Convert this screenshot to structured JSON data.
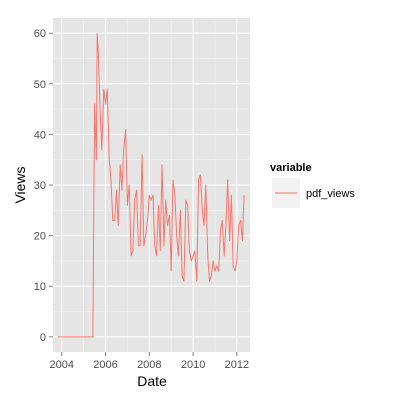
{
  "chart_data": {
    "type": "line",
    "xlabel": "Date",
    "ylabel": "Views",
    "xlim": [
      2003.6,
      2012.6
    ],
    "ylim": [
      -3,
      63
    ],
    "x_ticks": [
      2004,
      2006,
      2008,
      2010,
      2012
    ],
    "y_ticks": [
      0,
      10,
      20,
      30,
      40,
      50,
      60
    ],
    "grid": true,
    "legend": {
      "title": "variable",
      "position": "right",
      "entries": [
        "pdf_views"
      ]
    },
    "series": [
      {
        "name": "pdf_views",
        "color": "#F8766D",
        "x": [
          2003.83,
          2004.0,
          2004.5,
          2005.0,
          2005.42,
          2005.5,
          2005.58,
          2005.62,
          2005.67,
          2005.75,
          2005.83,
          2005.92,
          2006.0,
          2006.08,
          2006.17,
          2006.25,
          2006.33,
          2006.42,
          2006.5,
          2006.58,
          2006.67,
          2006.75,
          2006.83,
          2006.92,
          2007.0,
          2007.08,
          2007.17,
          2007.25,
          2007.33,
          2007.42,
          2007.5,
          2007.58,
          2007.67,
          2007.75,
          2007.83,
          2007.92,
          2008.0,
          2008.08,
          2008.17,
          2008.25,
          2008.33,
          2008.42,
          2008.5,
          2008.58,
          2008.67,
          2008.75,
          2008.83,
          2008.92,
          2009.0,
          2009.08,
          2009.17,
          2009.25,
          2009.33,
          2009.42,
          2009.5,
          2009.58,
          2009.67,
          2009.75,
          2009.83,
          2009.92,
          2010.0,
          2010.08,
          2010.17,
          2010.25,
          2010.33,
          2010.42,
          2010.5,
          2010.58,
          2010.67,
          2010.75,
          2010.83,
          2010.92,
          2011.0,
          2011.08,
          2011.17,
          2011.25,
          2011.33,
          2011.42,
          2011.5,
          2011.58,
          2011.67,
          2011.75,
          2011.83,
          2011.92,
          2012.0,
          2012.08,
          2012.17,
          2012.25,
          2012.33
        ],
        "y": [
          0,
          0,
          0,
          0,
          0,
          46,
          35,
          60,
          56,
          45,
          37,
          49,
          46,
          49,
          35,
          31,
          23,
          23,
          29,
          22,
          34,
          29,
          37,
          41,
          26,
          30,
          16,
          17,
          27,
          29,
          18,
          18,
          36,
          18,
          20,
          23,
          28,
          27,
          28,
          18,
          16,
          26,
          17,
          34,
          18,
          27,
          22,
          24,
          13,
          31,
          28,
          20,
          16,
          25,
          12,
          11,
          27,
          26,
          17,
          15,
          16,
          17,
          11,
          31,
          32,
          25,
          22,
          30,
          16,
          11,
          12,
          15,
          13,
          14,
          13,
          21,
          23,
          16,
          22,
          31,
          19,
          28,
          14,
          13,
          15,
          22,
          23,
          19,
          28
        ]
      }
    ]
  }
}
